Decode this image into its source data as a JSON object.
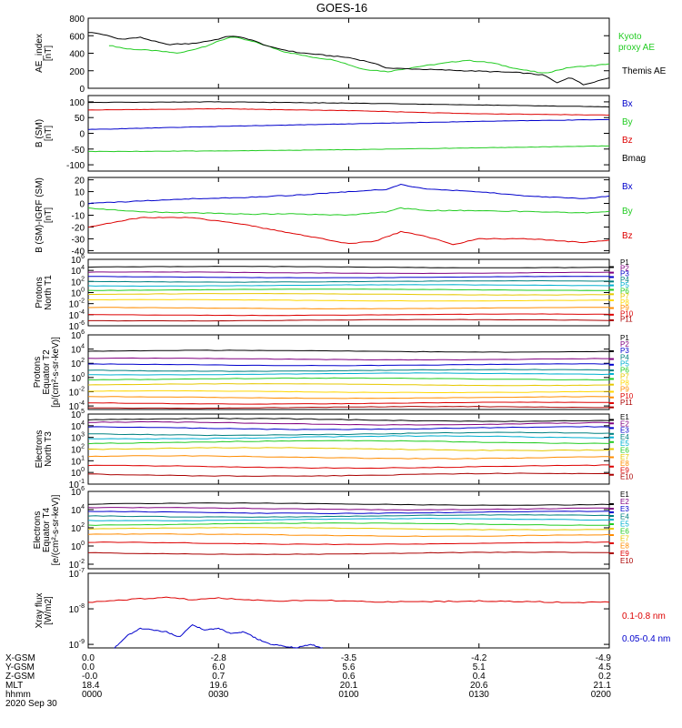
{
  "title": "GOES-16",
  "date": "2020 Sep 30",
  "colors": {
    "black": "#000000",
    "blue": "#0000cc",
    "green": "#22cc22",
    "red": "#dd0000",
    "navy": "#000080",
    "purple": "#800080",
    "teal": "#008080",
    "cyan": "#00b0d0",
    "yellow": "#e6c800",
    "orange": "#ff8c00",
    "darkred": "#aa0000"
  },
  "orbit_table": {
    "labels": [
      "X-GSM",
      "Y-GSM",
      "Z-GSM",
      "MLT",
      "hhmm"
    ],
    "columns": [
      [
        "0.0",
        "0.0",
        "-0.0",
        "18.4",
        "0000"
      ],
      [
        "-2.8",
        "6.0",
        "0.7",
        "19.6",
        "0030"
      ],
      [
        "-3.5",
        "5.6",
        "0.6",
        "20.1",
        "0100"
      ],
      [
        "-4.2",
        "5.1",
        "0.4",
        "20.6",
        "0130"
      ],
      [
        "-4.9",
        "4.5",
        "0.2",
        "21.1",
        "0200"
      ]
    ]
  },
  "chart_data": [
    {
      "type": "line",
      "ylabel": [
        "AE_index",
        "[nT]"
      ],
      "ylim": [
        0,
        800
      ],
      "ticks": [
        0,
        200,
        400,
        600,
        800
      ],
      "tick_labels": [
        "0",
        "200",
        "400",
        "600",
        "800"
      ],
      "x_hours": [
        0,
        0.25,
        0.5,
        0.75,
        1.0,
        1.25,
        1.5,
        1.75,
        2.0
      ],
      "series": [
        {
          "name": "Kyoto",
          "name2": "proxy AE",
          "color": "#22cc22",
          "x": [
            0.08,
            0.15,
            0.25,
            0.35,
            0.45,
            0.55,
            0.65,
            0.75,
            0.85,
            0.95,
            1.05,
            1.15,
            1.25,
            1.35,
            1.45,
            1.55,
            1.65,
            1.75,
            1.85,
            1.95,
            2.0
          ],
          "y": [
            490,
            450,
            430,
            400,
            480,
            590,
            520,
            420,
            360,
            320,
            220,
            190,
            240,
            280,
            320,
            290,
            220,
            170,
            240,
            260,
            280
          ]
        },
        {
          "name": "Themis AE",
          "color": "#000000",
          "x": [
            0.0,
            0.05,
            0.12,
            0.2,
            0.3,
            0.4,
            0.48,
            0.55,
            0.62,
            0.7,
            0.8,
            0.9,
            1.0,
            1.08,
            1.15,
            1.25,
            1.35,
            1.45,
            1.55,
            1.65,
            1.75,
            1.8,
            1.85,
            1.9,
            1.95,
            2.0
          ],
          "y": [
            640,
            620,
            560,
            580,
            500,
            510,
            550,
            600,
            560,
            470,
            410,
            380,
            350,
            300,
            230,
            220,
            210,
            200,
            190,
            180,
            150,
            60,
            130,
            40,
            80,
            120
          ]
        }
      ]
    },
    {
      "type": "line",
      "ylabel": [
        "B (SM)",
        "[nT]"
      ],
      "ylim": [
        -120,
        120
      ],
      "ticks": [
        -100,
        -50,
        0,
        50,
        100
      ],
      "tick_labels": [
        "-100",
        "-50",
        "0",
        "50",
        "100"
      ],
      "series": [
        {
          "name": "Bx",
          "color": "#0000cc",
          "x": [
            0,
            0.5,
            1.0,
            1.5,
            2.0
          ],
          "y": [
            12,
            22,
            30,
            38,
            44
          ]
        },
        {
          "name": "By",
          "color": "#22cc22",
          "x": [
            0,
            0.5,
            1.0,
            1.5,
            2.0
          ],
          "y": [
            -58,
            -56,
            -52,
            -46,
            -40
          ]
        },
        {
          "name": "Bz",
          "color": "#dd0000",
          "x": [
            0,
            0.5,
            1.0,
            1.5,
            2.0
          ],
          "y": [
            74,
            78,
            72,
            62,
            58
          ]
        },
        {
          "name": "Bmag",
          "color": "#000000",
          "x": [
            0,
            0.5,
            1.0,
            1.5,
            2.0
          ],
          "y": [
            98,
            100,
            96,
            90,
            84
          ]
        }
      ]
    },
    {
      "type": "line",
      "ylabel": [
        "B (SM)-IGRF (SM)",
        "[nT]"
      ],
      "ylim": [
        -42,
        22
      ],
      "ticks": [
        -40,
        -30,
        -20,
        -10,
        0,
        10,
        20
      ],
      "tick_labels": [
        "-40",
        "-30",
        "-20",
        "-10",
        "0",
        "10",
        "20"
      ],
      "series": [
        {
          "name": "Bx",
          "color": "#0000cc",
          "x": [
            0,
            0.2,
            0.4,
            0.6,
            0.8,
            1.0,
            1.15,
            1.2,
            1.3,
            1.5,
            1.7,
            1.9,
            2.0
          ],
          "y": [
            0,
            2,
            4,
            5,
            7,
            10,
            12,
            16,
            12,
            10,
            6,
            4,
            6
          ]
        },
        {
          "name": "By",
          "color": "#22cc22",
          "x": [
            0,
            0.2,
            0.4,
            0.6,
            0.8,
            1.0,
            1.15,
            1.2,
            1.3,
            1.5,
            1.7,
            1.9,
            2.0
          ],
          "y": [
            -4,
            -7,
            -8,
            -9,
            -9,
            -10,
            -7,
            -4,
            -6,
            -6,
            -7,
            -8,
            -7
          ]
        },
        {
          "name": "Bz",
          "color": "#dd0000",
          "x": [
            0,
            0.1,
            0.2,
            0.4,
            0.6,
            0.8,
            1.0,
            1.1,
            1.2,
            1.3,
            1.4,
            1.5,
            1.7,
            1.9,
            2.0
          ],
          "y": [
            -20,
            -16,
            -12,
            -12,
            -18,
            -26,
            -34,
            -32,
            -24,
            -28,
            -35,
            -30,
            -30,
            -33,
            -31
          ]
        }
      ]
    },
    {
      "type": "line",
      "log": true,
      "ylabel": [
        "Protons",
        "North T1"
      ],
      "ylim_exp": [
        -6,
        6
      ],
      "tick_exps": [
        -6,
        -4,
        -2,
        0,
        2,
        4,
        6
      ],
      "series": [
        {
          "name": "P1",
          "color": "#000000",
          "y_exp": 4.6
        },
        {
          "name": "P2",
          "color": "#800080",
          "y_exp": 3.6
        },
        {
          "name": "P3",
          "color": "#0000cc",
          "y_exp": 2.8
        },
        {
          "name": "P4",
          "color": "#008080",
          "y_exp": 2.0
        },
        {
          "name": "P5",
          "color": "#00b0d0",
          "y_exp": 1.3
        },
        {
          "name": "P6",
          "color": "#22cc22",
          "y_exp": 0.5
        },
        {
          "name": "P7",
          "color": "#e6c800",
          "y_exp": -0.3
        },
        {
          "name": "P8",
          "color": "#ffd700",
          "y_exp": -1.4
        },
        {
          "name": "P9",
          "color": "#ff8c00",
          "y_exp": -2.8
        },
        {
          "name": "P10",
          "color": "#dd0000",
          "y_exp": -4.0
        },
        {
          "name": "P11",
          "color": "#aa0000",
          "y_exp": -5.0
        }
      ]
    },
    {
      "type": "line",
      "log": true,
      "ylabel": [
        "Protons",
        "Equator T2",
        "[p/(cm²-s-sr-keV)]"
      ],
      "ylim_exp": [
        -4.5,
        6
      ],
      "tick_exps": [
        -4,
        -2,
        0,
        2,
        4,
        6
      ],
      "series": [
        {
          "name": "P1",
          "color": "#000000",
          "y_exp": 3.7
        },
        {
          "name": "P2",
          "color": "#800080",
          "y_exp": 2.6
        },
        {
          "name": "P3",
          "color": "#0000cc",
          "y_exp": 1.8
        },
        {
          "name": "P4",
          "color": "#008080",
          "y_exp": 1.0
        },
        {
          "name": "P5",
          "color": "#00b0d0",
          "y_exp": 0.5
        },
        {
          "name": "P6",
          "color": "#22cc22",
          "y_exp": -0.2
        },
        {
          "name": "P7",
          "color": "#e6c800",
          "y_exp": -1.0
        },
        {
          "name": "P8",
          "color": "#ffd700",
          "y_exp": -2.0
        },
        {
          "name": "P9",
          "color": "#ff8c00",
          "y_exp": -2.8
        },
        {
          "name": "P10",
          "color": "#dd0000",
          "y_exp": -3.6
        },
        {
          "name": "P11",
          "color": "#aa0000",
          "y_exp": -4.2
        }
      ]
    },
    {
      "type": "line",
      "log": true,
      "ylabel": [
        "Electrons",
        "North T3"
      ],
      "ylim_exp": [
        -1,
        5
      ],
      "tick_exps": [
        -1,
        0,
        1,
        2,
        3,
        4,
        5
      ],
      "series": [
        {
          "name": "E1",
          "color": "#000000",
          "y_exp": 4.5
        },
        {
          "name": "E2",
          "color": "#800080",
          "y_exp": 4.2
        },
        {
          "name": "E3",
          "color": "#0000cc",
          "y_exp": 3.8
        },
        {
          "name": "E4",
          "color": "#008080",
          "y_exp": 3.3
        },
        {
          "name": "E5",
          "color": "#00b0d0",
          "y_exp": 3.0
        },
        {
          "name": "E6",
          "color": "#22cc22",
          "y_exp": 2.6
        },
        {
          "name": "E7",
          "color": "#e6c800",
          "y_exp": 2.0
        },
        {
          "name": "E8",
          "color": "#ff8c00",
          "y_exp": 1.3
        },
        {
          "name": "E9",
          "color": "#dd0000",
          "y_exp": 0.5
        },
        {
          "name": "E10",
          "color": "#aa0000",
          "y_exp": -0.2
        }
      ]
    },
    {
      "type": "line",
      "log": true,
      "ylabel": [
        "Electrons",
        "Equator T4",
        "[e/(cm²-s-sr-keV)]"
      ],
      "ylim_exp": [
        -2.5,
        6
      ],
      "tick_exps": [
        -2,
        0,
        2,
        4,
        6
      ],
      "series": [
        {
          "name": "E1",
          "color": "#000000",
          "y_exp": 4.6
        },
        {
          "name": "E2",
          "color": "#800080",
          "y_exp": 4.1
        },
        {
          "name": "E3",
          "color": "#0000cc",
          "y_exp": 3.7
        },
        {
          "name": "E4",
          "color": "#008080",
          "y_exp": 3.3
        },
        {
          "name": "E5",
          "color": "#00b0d0",
          "y_exp": 2.9
        },
        {
          "name": "E6",
          "color": "#22cc22",
          "y_exp": 2.4
        },
        {
          "name": "E7",
          "color": "#e6c800",
          "y_exp": 1.9
        },
        {
          "name": "E8",
          "color": "#ff8c00",
          "y_exp": 1.2
        },
        {
          "name": "E9",
          "color": "#dd0000",
          "y_exp": 0.3
        },
        {
          "name": "E10",
          "color": "#aa0000",
          "y_exp": -0.8
        }
      ]
    },
    {
      "type": "line",
      "log": true,
      "ylabel": [
        "Xray flux",
        "[W/m2]"
      ],
      "ylim_exp": [
        -9.1,
        -7
      ],
      "tick_exps": [
        -9,
        -8,
        -7
      ],
      "series": [
        {
          "name": "0.1-0.8 nm",
          "color": "#dd0000",
          "x": [
            0,
            0.1,
            0.2,
            0.3,
            0.4,
            0.5,
            0.7,
            0.9,
            1.1,
            1.3,
            1.5,
            1.7,
            1.9,
            2.0
          ],
          "y_exp": [
            -7.82,
            -7.76,
            -7.72,
            -7.68,
            -7.74,
            -7.7,
            -7.78,
            -7.76,
            -7.8,
            -7.8,
            -7.78,
            -7.8,
            -7.82,
            -7.8
          ]
        },
        {
          "name": "0.05-0.4 nm",
          "color": "#0000cc",
          "x": [
            0.1,
            0.15,
            0.2,
            0.25,
            0.3,
            0.35,
            0.4,
            0.45,
            0.5,
            0.55,
            0.6,
            0.65,
            0.7,
            0.75,
            0.8,
            0.85,
            0.9
          ],
          "y_exp": [
            -9.1,
            -8.75,
            -8.55,
            -8.6,
            -8.65,
            -8.8,
            -8.45,
            -8.6,
            -8.55,
            -8.7,
            -8.65,
            -8.85,
            -9.0,
            -9.05,
            -9.1,
            -9.0,
            -9.1
          ]
        }
      ]
    }
  ]
}
